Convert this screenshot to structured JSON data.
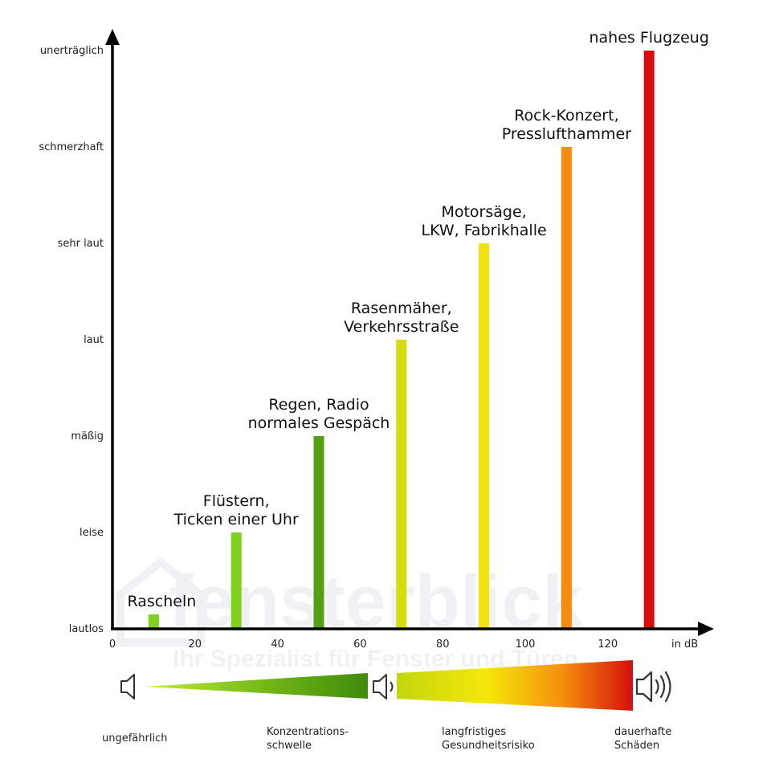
{
  "chart_data": {
    "type": "bar",
    "xlabel": "in dB",
    "xlim": [
      0,
      140
    ],
    "xticks": [
      "0",
      "20",
      "40",
      "60",
      "80",
      "100",
      "120"
    ],
    "y_levels": [
      "lautlos",
      "leise",
      "mäßig",
      "laut",
      "sehr laut",
      "schmerzhaft",
      "unerträglich"
    ],
    "grid": false,
    "bars": [
      {
        "db": 10,
        "level": 0.15,
        "color": "#7fd11a",
        "label": [
          "Rascheln"
        ]
      },
      {
        "db": 30,
        "level": 1,
        "color": "#7fd11a",
        "label": [
          "Flüstern,",
          "Ticken einer Uhr"
        ]
      },
      {
        "db": 50,
        "level": 2,
        "color": "#55a010",
        "label": [
          "Regen, Radio",
          "normales Gespäch"
        ]
      },
      {
        "db": 70,
        "level": 3,
        "color": "#d6dc0a",
        "label": [
          "Rasenmäher,",
          "Verkehrsstraße"
        ]
      },
      {
        "db": 90,
        "level": 4,
        "color": "#f2e10a",
        "label": [
          "Motorsäge,",
          "LKW, Fabrikhalle"
        ]
      },
      {
        "db": 110,
        "level": 5,
        "color": "#f88a0c",
        "label": [
          "Rock-Konzert,",
          "Presslufthammer"
        ]
      },
      {
        "db": 130,
        "level": 6,
        "color": "#d90c0c",
        "label": [
          "nahes Flugzeug"
        ]
      }
    ]
  },
  "scale": {
    "zones": [
      {
        "text": [
          "ungefährlich"
        ]
      },
      {
        "text": [
          "Konzentrations-",
          "schwelle"
        ]
      },
      {
        "text": [
          "langfristiges",
          "Gesundheitsrisiko"
        ]
      },
      {
        "text": [
          "dauerhafte",
          "Schäden"
        ]
      }
    ],
    "icons": [
      "speaker-quiet-icon",
      "speaker-medium-icon",
      "speaker-loud-icon"
    ],
    "gradient_colors": [
      "#b8ec3a",
      "#4d9a0e",
      "#c8d80c",
      "#f4e60a",
      "#f5860c",
      "#d4100c"
    ]
  },
  "watermark": {
    "brand": "fensterblick",
    "tagline": "Ihr Spezialist für Fenster und Türen"
  }
}
